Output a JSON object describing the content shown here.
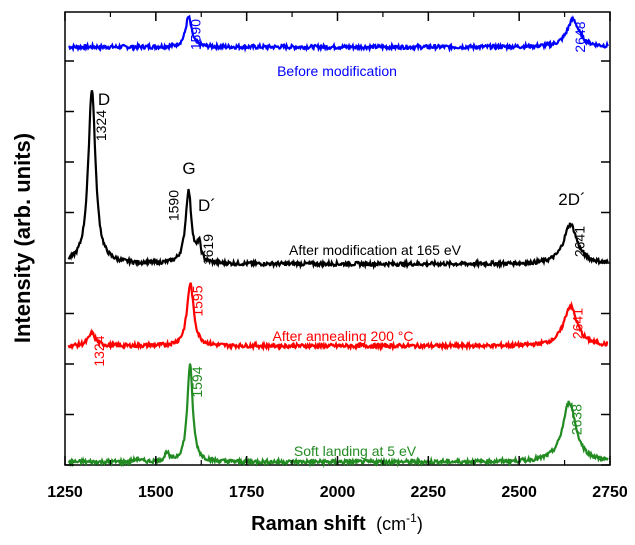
{
  "chart_data": {
    "type": "line",
    "xlabel": "Raman shift",
    "xlabel_unit_base": "(cm",
    "xlabel_unit_exp": "-1",
    "xlabel_unit_close": ")",
    "ylabel": "Intensity (arb. units)",
    "xlim": [
      1250,
      2750
    ],
    "x_ticks": [
      "1250",
      "1500",
      "1750",
      "2000",
      "2250",
      "2500",
      "2750"
    ],
    "grid": false,
    "series": [
      {
        "name": "Before modification",
        "color": "#0000ff",
        "baseline": 0.7,
        "peaks": [
          {
            "x": 1590,
            "height": 0.6,
            "width": 10,
            "label": "1590"
          },
          {
            "x": 2648,
            "height": 0.55,
            "width": 20,
            "label": "2648"
          }
        ]
      },
      {
        "name": "After modification at 165 eV",
        "color": "#000000",
        "baseline": 0.0,
        "peaks": [
          {
            "x": 1324,
            "height": 3.5,
            "width": 12,
            "label": "1324"
          },
          {
            "x": 1590,
            "height": 1.45,
            "width": 10,
            "label": "1590"
          },
          {
            "x": 1619,
            "height": 0.35,
            "width": 6,
            "label": "1619"
          },
          {
            "x": 2641,
            "height": 0.8,
            "width": 22,
            "label": "2641"
          }
        ]
      },
      {
        "name": "After annealing 200 °C",
        "color": "#ff0000",
        "baseline": 0.0,
        "peaks": [
          {
            "x": 1324,
            "height": 0.25,
            "width": 12,
            "label": "1324"
          },
          {
            "x": 1595,
            "height": 1.25,
            "width": 11,
            "label": "1595"
          },
          {
            "x": 2641,
            "height": 0.8,
            "width": 22,
            "label": "2641"
          }
        ]
      },
      {
        "name": "Soft landing at 5 eV",
        "color": "#228b22",
        "baseline": 0.0,
        "peaks": [
          {
            "x": 1594,
            "height": 1.95,
            "width": 9,
            "label": "1594"
          },
          {
            "x": 2638,
            "height": 1.2,
            "width": 22,
            "label": "2638"
          },
          {
            "x": 1530,
            "height": 0.18,
            "width": 6,
            "label": ""
          },
          {
            "x": 1450,
            "height": 0.06,
            "width": 8,
            "label": ""
          }
        ]
      }
    ],
    "band_labels": [
      "D",
      "G",
      "D´",
      "2D´"
    ]
  }
}
